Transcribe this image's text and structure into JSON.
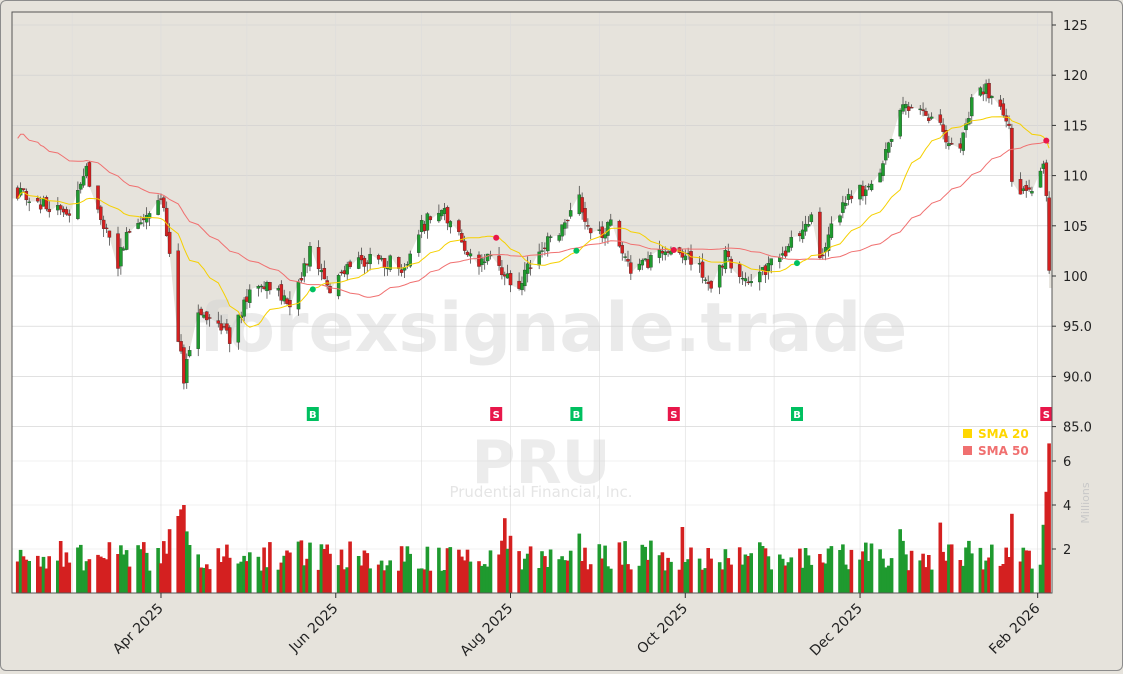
{
  "chart_data": {
    "type": "candlestick",
    "ticker": "PRU",
    "company": "Prudential Financial, Inc.",
    "watermark": "forexsignale.trade",
    "x_labels": [
      "Apr 2025",
      "Jun 2025",
      "Aug 2025",
      "Oct 2025",
      "Dec 2025",
      "Feb 2026"
    ],
    "price_axis": {
      "ticks": [
        "125",
        "120",
        "115",
        "110",
        "105",
        "100",
        "95.0",
        "90.0",
        "85.0"
      ],
      "ylim": [
        84,
        126
      ]
    },
    "volume_axis": {
      "ticks": [
        "2",
        "4",
        "6"
      ],
      "label": "Millions",
      "ylim": [
        0,
        7
      ]
    },
    "legend": [
      {
        "label": "SMA 20",
        "color": "#ffd700"
      },
      {
        "label": "SMA 50",
        "color": "#f07070"
      }
    ],
    "colors": {
      "up": "#1f9a2f",
      "down": "#d42020",
      "buy": "#00c060",
      "sell": "#e8174a"
    },
    "signals": [
      {
        "type": "B",
        "date": "2025-05-24"
      },
      {
        "type": "S",
        "date": "2025-07-27"
      },
      {
        "type": "B",
        "date": "2025-08-24"
      },
      {
        "type": "S",
        "date": "2025-09-27"
      },
      {
        "type": "B",
        "date": "2025-11-09"
      },
      {
        "type": "S",
        "date": "2026-02-04"
      }
    ],
    "price_anchors": [
      [
        "2025-02-10",
        108.5
      ],
      [
        "2025-02-20",
        107
      ],
      [
        "2025-03-01",
        106
      ],
      [
        "2025-03-06",
        110.5
      ],
      [
        "2025-03-12",
        105
      ],
      [
        "2025-03-17",
        101.5
      ],
      [
        "2025-03-22",
        105
      ],
      [
        "2025-03-27",
        106
      ],
      [
        "2025-04-01",
        108
      ],
      [
        "2025-04-04",
        103
      ],
      [
        "2025-04-07",
        94
      ],
      [
        "2025-04-09",
        90
      ],
      [
        "2025-04-14",
        96
      ],
      [
        "2025-04-20",
        95
      ],
      [
        "2025-04-25",
        94
      ],
      [
        "2025-05-02",
        98
      ],
      [
        "2025-05-10",
        99
      ],
      [
        "2025-05-16",
        97.5
      ],
      [
        "2025-05-24",
        103
      ],
      [
        "2025-05-29",
        98.5
      ],
      [
        "2025-06-05",
        100.5
      ],
      [
        "2025-06-15",
        102
      ],
      [
        "2025-06-25",
        100.5
      ],
      [
        "2025-07-01",
        105
      ],
      [
        "2025-07-08",
        106.5
      ],
      [
        "2025-07-15",
        104
      ],
      [
        "2025-07-20",
        100
      ],
      [
        "2025-07-24",
        102.5
      ],
      [
        "2025-07-30",
        100
      ],
      [
        "2025-08-03",
        98.5
      ],
      [
        "2025-08-11",
        103
      ],
      [
        "2025-08-18",
        104.5
      ],
      [
        "2025-08-25",
        108
      ],
      [
        "2025-08-30",
        103.5
      ],
      [
        "2025-09-05",
        105
      ],
      [
        "2025-09-12",
        100.5
      ],
      [
        "2025-09-20",
        101.5
      ],
      [
        "2025-09-28",
        103
      ],
      [
        "2025-10-05",
        101
      ],
      [
        "2025-10-10",
        99
      ],
      [
        "2025-10-15",
        102
      ],
      [
        "2025-10-20",
        99.5
      ],
      [
        "2025-10-30",
        101
      ],
      [
        "2025-11-05",
        102.5
      ],
      [
        "2025-11-10",
        104.5
      ],
      [
        "2025-11-14",
        106
      ],
      [
        "2025-11-17",
        101.5
      ],
      [
        "2025-11-20",
        104
      ],
      [
        "2025-11-27",
        108
      ],
      [
        "2025-12-02",
        108.5
      ],
      [
        "2025-12-08",
        111
      ],
      [
        "2025-12-12",
        114
      ],
      [
        "2025-12-16",
        117.5
      ],
      [
        "2025-12-22",
        116
      ],
      [
        "2025-12-29",
        114.5
      ],
      [
        "2026-01-05",
        113
      ],
      [
        "2026-01-09",
        117.5
      ],
      [
        "2026-01-12",
        119
      ],
      [
        "2026-01-19",
        117
      ],
      [
        "2026-01-22",
        114.5
      ],
      [
        "2026-01-23",
        110
      ],
      [
        "2026-01-28",
        108
      ],
      [
        "2026-01-31",
        107.5
      ],
      [
        "2026-02-01",
        110.5
      ],
      [
        "2026-02-03",
        111.5
      ],
      [
        "2026-02-04",
        108
      ],
      [
        "2026-02-05",
        100.5
      ]
    ]
  }
}
